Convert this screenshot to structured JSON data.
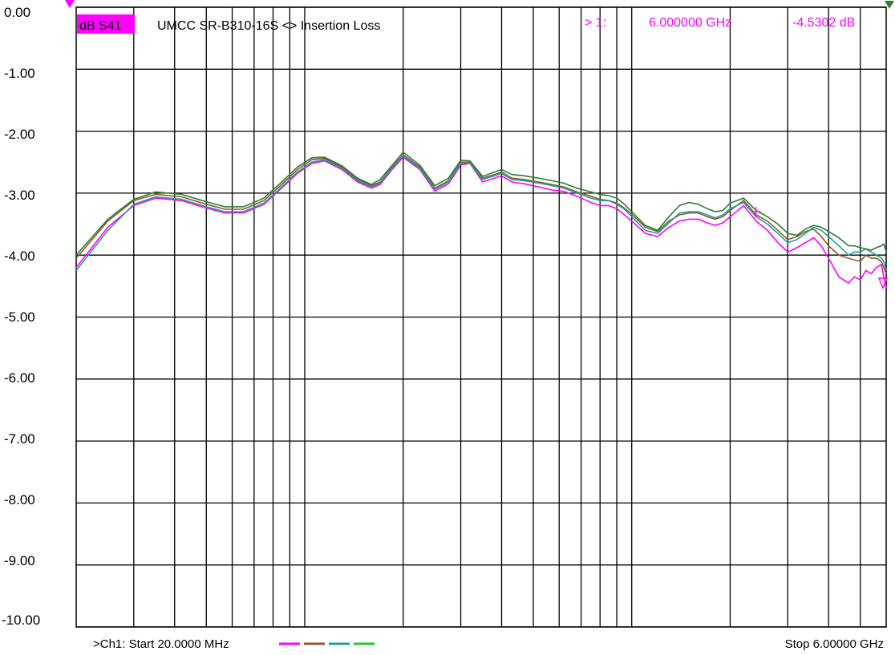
{
  "header": {
    "trace_label": "dB S41",
    "title": "UMCC  SR-B310-16S <> Insertion Loss",
    "marker_num": "> 1:",
    "marker_freq": "6.000000 GHz",
    "marker_value": "-4.5302 dB"
  },
  "footer": {
    "start": ">Ch1: Start  20.0000 MHz",
    "stop": "Stop  6.00000 GHz"
  },
  "colors": {
    "grid": "#000000",
    "background": "#ffffff",
    "marker": "#ff00ff",
    "trace_label_bg": "#ff00ff"
  },
  "chart_data": {
    "type": "line",
    "xscale": "log",
    "xlim": [
      20,
      6000
    ],
    "ylim": [
      -10,
      0
    ],
    "x_unit": "MHz",
    "y_unit": "dB",
    "yticks": [
      "0.00",
      "-1.00",
      "-2.00",
      "-3.00",
      "-4.00",
      "-5.00",
      "-6.00",
      "-7.00",
      "-8.00",
      "-9.00",
      "-10.00"
    ],
    "grid": true,
    "series": [
      {
        "color": "#ff00ff",
        "x": [
          20,
          25,
          30,
          35,
          42,
          50,
          57,
          65,
          75,
          85,
          95,
          105,
          115,
          130,
          145,
          160,
          170,
          185,
          200,
          225,
          250,
          275,
          300,
          320,
          350,
          380,
          400,
          430,
          470,
          520,
          570,
          620,
          680,
          750,
          800,
          850,
          900,
          950,
          1000,
          1100,
          1200,
          1300,
          1400,
          1500,
          1600,
          1700,
          1800,
          1900,
          2000,
          2200,
          2400,
          2600,
          2800,
          3000,
          3200,
          3400,
          3600,
          3800,
          4000,
          4300,
          4600,
          4800,
          5000,
          5200,
          5400,
          5600,
          5800,
          5900,
          6000
        ],
        "y": [
          -4.2,
          -3.55,
          -3.2,
          -3.08,
          -3.12,
          -3.24,
          -3.32,
          -3.32,
          -3.18,
          -2.92,
          -2.68,
          -2.52,
          -2.48,
          -2.62,
          -2.82,
          -2.92,
          -2.86,
          -2.62,
          -2.42,
          -2.62,
          -2.97,
          -2.85,
          -2.55,
          -2.52,
          -2.82,
          -2.76,
          -2.72,
          -2.82,
          -2.85,
          -2.9,
          -2.95,
          -2.97,
          -3.05,
          -3.15,
          -3.2,
          -3.2,
          -3.25,
          -3.35,
          -3.45,
          -3.65,
          -3.7,
          -3.55,
          -3.45,
          -3.42,
          -3.42,
          -3.48,
          -3.52,
          -3.48,
          -3.38,
          -3.2,
          -3.45,
          -3.6,
          -3.8,
          -3.95,
          -3.88,
          -3.8,
          -3.72,
          -3.85,
          -4.05,
          -4.35,
          -4.45,
          -4.35,
          -4.4,
          -4.25,
          -4.3,
          -4.2,
          -4.15,
          -4.35,
          -4.53
        ]
      },
      {
        "color": "#8b5a2b",
        "x": [
          20,
          25,
          30,
          35,
          42,
          50,
          57,
          65,
          75,
          85,
          95,
          105,
          115,
          130,
          145,
          160,
          170,
          185,
          200,
          225,
          250,
          275,
          300,
          320,
          350,
          380,
          400,
          430,
          470,
          520,
          570,
          620,
          680,
          750,
          800,
          850,
          900,
          950,
          1000,
          1100,
          1200,
          1300,
          1400,
          1500,
          1600,
          1700,
          1800,
          1900,
          2000,
          2200,
          2400,
          2600,
          2800,
          3000,
          3200,
          3400,
          3600,
          3800,
          4000,
          4300,
          4600,
          4800,
          5000,
          5200,
          5400,
          5600,
          5800,
          5900,
          6000
        ],
        "y": [
          -4.05,
          -3.45,
          -3.12,
          -3.02,
          -3.06,
          -3.18,
          -3.26,
          -3.26,
          -3.12,
          -2.86,
          -2.62,
          -2.46,
          -2.44,
          -2.58,
          -2.78,
          -2.88,
          -2.82,
          -2.58,
          -2.38,
          -2.58,
          -2.92,
          -2.8,
          -2.5,
          -2.5,
          -2.76,
          -2.7,
          -2.66,
          -2.76,
          -2.78,
          -2.82,
          -2.86,
          -2.9,
          -2.98,
          -3.05,
          -3.1,
          -3.12,
          -3.16,
          -3.24,
          -3.34,
          -3.55,
          -3.62,
          -3.45,
          -3.35,
          -3.32,
          -3.32,
          -3.38,
          -3.42,
          -3.38,
          -3.28,
          -3.12,
          -3.35,
          -3.45,
          -3.6,
          -3.75,
          -3.7,
          -3.62,
          -3.58,
          -3.7,
          -3.85,
          -4.0,
          -4.05,
          -4.08,
          -4.1,
          -4.0,
          -4.05,
          -4.05,
          -4.1,
          -4.2,
          -4.3
        ]
      },
      {
        "color": "#20a0a0",
        "x": [
          20,
          25,
          30,
          35,
          42,
          50,
          57,
          65,
          75,
          85,
          95,
          105,
          115,
          130,
          145,
          160,
          170,
          185,
          200,
          225,
          250,
          275,
          300,
          320,
          350,
          380,
          400,
          430,
          470,
          520,
          570,
          620,
          680,
          750,
          800,
          850,
          900,
          950,
          1000,
          1100,
          1200,
          1300,
          1400,
          1500,
          1600,
          1700,
          1800,
          1900,
          2000,
          2200,
          2400,
          2600,
          2800,
          3000,
          3200,
          3400,
          3600,
          3800,
          4000,
          4300,
          4600,
          4800,
          5000,
          5200,
          5400,
          5600,
          5800,
          5900,
          6000
        ],
        "y": [
          -4.25,
          -3.6,
          -3.18,
          -3.06,
          -3.1,
          -3.22,
          -3.3,
          -3.3,
          -3.16,
          -2.9,
          -2.66,
          -2.5,
          -2.46,
          -2.6,
          -2.8,
          -2.9,
          -2.84,
          -2.6,
          -2.4,
          -2.6,
          -2.94,
          -2.82,
          -2.52,
          -2.52,
          -2.78,
          -2.72,
          -2.68,
          -2.78,
          -2.8,
          -2.84,
          -2.88,
          -2.92,
          -3.0,
          -3.08,
          -3.12,
          -3.12,
          -3.18,
          -3.26,
          -3.38,
          -3.6,
          -3.65,
          -3.48,
          -3.32,
          -3.3,
          -3.3,
          -3.35,
          -3.4,
          -3.35,
          -3.25,
          -3.15,
          -3.38,
          -3.5,
          -3.65,
          -3.8,
          -3.75,
          -3.65,
          -3.55,
          -3.6,
          -3.7,
          -3.85,
          -4.0,
          -3.95,
          -3.95,
          -3.9,
          -3.95,
          -4.0,
          -4.05,
          -4.1,
          -4.25
        ]
      },
      {
        "color": "#2e7d32",
        "x": [
          20,
          25,
          30,
          35,
          42,
          50,
          57,
          65,
          75,
          85,
          95,
          105,
          115,
          130,
          145,
          160,
          170,
          185,
          200,
          225,
          250,
          275,
          300,
          320,
          350,
          380,
          400,
          430,
          470,
          520,
          570,
          620,
          680,
          750,
          800,
          850,
          900,
          950,
          1000,
          1100,
          1200,
          1300,
          1400,
          1500,
          1600,
          1700,
          1800,
          1900,
          2000,
          2200,
          2400,
          2600,
          2800,
          3000,
          3200,
          3400,
          3600,
          3800,
          4000,
          4300,
          4600,
          4800,
          5000,
          5200,
          5400,
          5600,
          5800,
          5900,
          6000
        ],
        "y": [
          -4.0,
          -3.42,
          -3.1,
          -2.98,
          -3.02,
          -3.14,
          -3.22,
          -3.22,
          -3.08,
          -2.82,
          -2.58,
          -2.43,
          -2.42,
          -2.56,
          -2.76,
          -2.86,
          -2.78,
          -2.55,
          -2.34,
          -2.55,
          -2.88,
          -2.76,
          -2.47,
          -2.48,
          -2.73,
          -2.66,
          -2.62,
          -2.7,
          -2.72,
          -2.76,
          -2.8,
          -2.84,
          -2.92,
          -2.98,
          -3.02,
          -3.04,
          -3.08,
          -3.18,
          -3.3,
          -3.52,
          -3.6,
          -3.38,
          -3.2,
          -3.15,
          -3.18,
          -3.25,
          -3.3,
          -3.28,
          -3.16,
          -3.08,
          -3.28,
          -3.38,
          -3.5,
          -3.65,
          -3.68,
          -3.58,
          -3.52,
          -3.55,
          -3.62,
          -3.72,
          -3.85,
          -3.85,
          -3.88,
          -3.9,
          -3.92,
          -3.88,
          -3.85,
          -3.82,
          -3.95
        ]
      }
    ],
    "markers": [
      {
        "label": "1",
        "x": 6000,
        "y": -4.5302
      }
    ]
  }
}
